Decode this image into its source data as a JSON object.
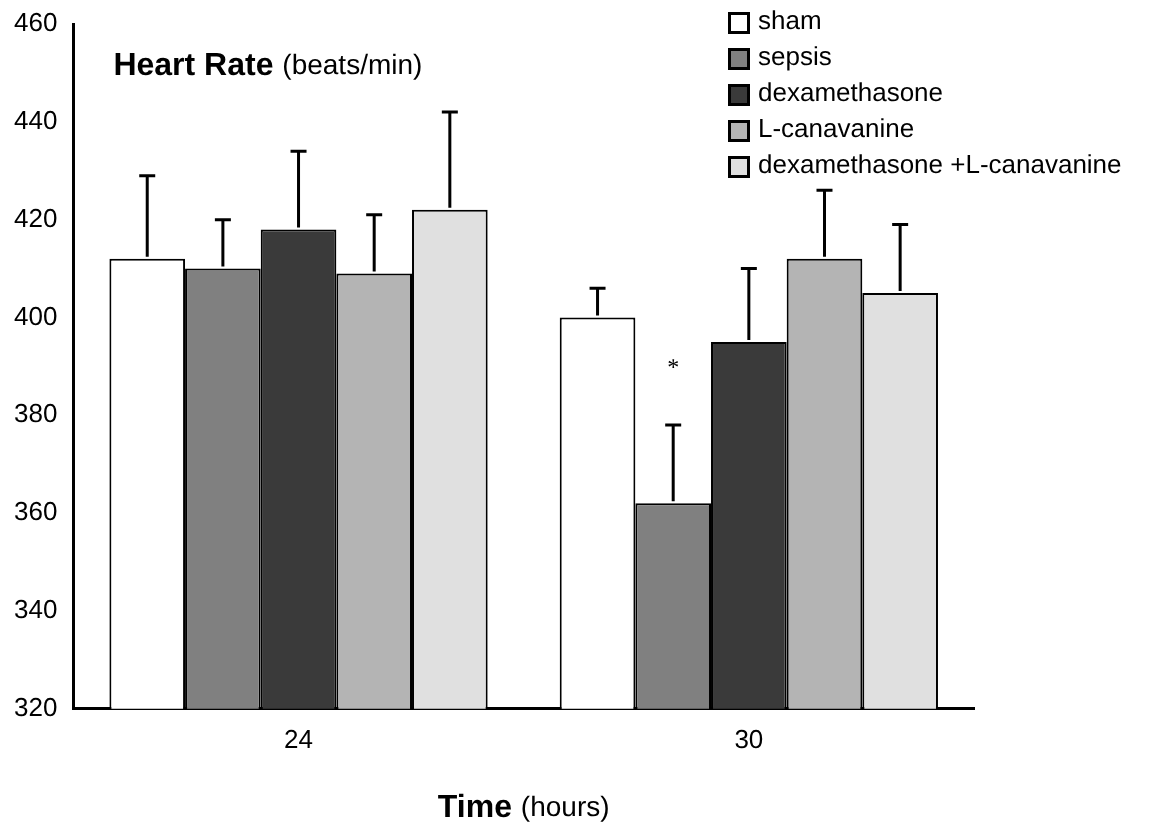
{
  "chart_data": {
    "type": "bar",
    "title": "Heart Rate (beats/min)",
    "xlabel": "Time (hours)",
    "categories": [
      "24",
      "30"
    ],
    "series": [
      {
        "name": "sham",
        "color": "#ffffff",
        "values": [
          412,
          400
        ],
        "errors": [
          [
            412,
            429
          ],
          [
            400,
            406
          ]
        ]
      },
      {
        "name": "sepsis",
        "color": "#808080",
        "values": [
          410,
          362
        ],
        "errors": [
          [
            410,
            420
          ],
          [
            362,
            378
          ]
        ]
      },
      {
        "name": "dexamethasone",
        "color": "#3a3a3a",
        "values": [
          418,
          395
        ],
        "errors": [
          [
            418,
            434
          ],
          [
            395,
            410
          ]
        ]
      },
      {
        "name": "L-canavanine",
        "color": "#b4b4b4",
        "values": [
          409,
          412
        ],
        "errors": [
          [
            409,
            421
          ],
          [
            412,
            426
          ]
        ]
      },
      {
        "name": "dexamethasone +L-canavanine",
        "color": "#e0e0e0",
        "values": [
          422,
          405
        ],
        "errors": [
          [
            422,
            442
          ],
          [
            405,
            419
          ]
        ]
      }
    ],
    "ylim": [
      320,
      460
    ],
    "yticks": [
      320,
      340,
      360,
      380,
      400,
      420,
      440,
      460
    ],
    "grid": false,
    "legend": "top right",
    "annotations": [
      "*"
    ]
  }
}
